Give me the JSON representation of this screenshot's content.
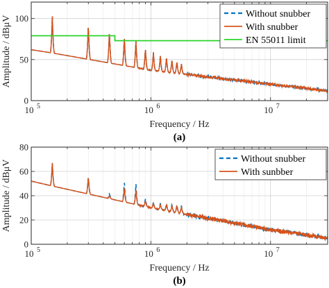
{
  "chart_data": [
    {
      "type": "line",
      "panel_label": "(a)",
      "xlabel": "Frequency / Hz",
      "ylabel": "Amplitude / dBμV",
      "xscale": "log",
      "xlim": [
        100000,
        30000000
      ],
      "ylim": [
        0,
        120
      ],
      "yticks": [
        0,
        50,
        100
      ],
      "xtick_labels": [
        {
          "base": "10",
          "exp": "5",
          "value": 100000
        },
        {
          "base": "10",
          "exp": "6",
          "value": 1000000
        },
        {
          "base": "10",
          "exp": "7",
          "value": 10000000
        }
      ],
      "grid": true,
      "legend_position": "top-right",
      "series": [
        {
          "name": "Without snubber",
          "color": "#0072BD",
          "style": "dashed",
          "baseline": [
            [
              100000,
              62
            ],
            [
              150000,
              58
            ],
            [
              1000000,
              37
            ],
            [
              10000000,
              20
            ],
            [
              30000000,
              12
            ]
          ],
          "peaks": [
            [
              150000,
              103
            ],
            [
              300000,
              93
            ],
            [
              450000,
              85
            ],
            [
              600000,
              78
            ],
            [
              750000,
              74
            ],
            [
              900000,
              64
            ],
            [
              1050000,
              59
            ],
            [
              1200000,
              55
            ],
            [
              1350000,
              53
            ],
            [
              1500000,
              50
            ],
            [
              1650000,
              48
            ],
            [
              1800000,
              45
            ]
          ]
        },
        {
          "name": "With snubber",
          "color": "#D95319",
          "style": "solid",
          "baseline": [
            [
              100000,
              62
            ],
            [
              150000,
              58
            ],
            [
              1000000,
              37
            ],
            [
              10000000,
              20
            ],
            [
              30000000,
              12
            ]
          ],
          "peaks": [
            [
              150000,
              103
            ],
            [
              300000,
              93
            ],
            [
              450000,
              85
            ],
            [
              600000,
              78
            ],
            [
              750000,
              74
            ],
            [
              900000,
              64
            ],
            [
              1050000,
              59
            ],
            [
              1200000,
              55
            ],
            [
              1350000,
              53
            ],
            [
              1500000,
              50
            ],
            [
              1650000,
              48
            ],
            [
              1800000,
              45
            ]
          ]
        },
        {
          "name": "EN 55011 limit",
          "color": "#2BD42B",
          "style": "solid",
          "points": [
            [
              100000,
              79
            ],
            [
              500000,
              79
            ],
            [
              500000,
              73
            ],
            [
              30000000,
              73
            ]
          ]
        }
      ]
    },
    {
      "type": "line",
      "panel_label": "(b)",
      "xlabel": "Frequency / Hz",
      "ylabel": "Amplitude / dBμV",
      "xscale": "log",
      "xlim": [
        100000,
        30000000
      ],
      "ylim": [
        0,
        80
      ],
      "yticks": [
        0,
        20,
        40,
        60,
        80
      ],
      "xtick_labels": [
        {
          "base": "10",
          "exp": "5",
          "value": 100000
        },
        {
          "base": "10",
          "exp": "6",
          "value": 1000000
        },
        {
          "base": "10",
          "exp": "7",
          "value": 10000000
        }
      ],
      "grid": true,
      "legend_position": "top-right",
      "series": [
        {
          "name": "Without snubber",
          "color": "#0072BD",
          "style": "dashed",
          "baseline": [
            [
              100000,
              52
            ],
            [
              150000,
              48
            ],
            [
              1000000,
              30
            ],
            [
              10000000,
              12
            ],
            [
              30000000,
              5
            ]
          ],
          "peaks": [
            [
              150000,
              67
            ],
            [
              300000,
              56
            ],
            [
              450000,
              42
            ],
            [
              600000,
              52
            ],
            [
              750000,
              50
            ],
            [
              900000,
              38
            ],
            [
              1050000,
              35
            ],
            [
              1200000,
              34
            ],
            [
              1350000,
              34
            ],
            [
              1500000,
              33
            ],
            [
              1650000,
              33
            ],
            [
              1800000,
              32
            ]
          ]
        },
        {
          "name": "With sunbber",
          "color": "#D95319",
          "style": "solid",
          "baseline": [
            [
              100000,
              52
            ],
            [
              150000,
              48
            ],
            [
              1000000,
              30
            ],
            [
              10000000,
              12
            ],
            [
              30000000,
              5
            ]
          ],
          "peaks": [
            [
              150000,
              67
            ],
            [
              300000,
              56
            ],
            [
              450000,
              40
            ],
            [
              600000,
              47
            ],
            [
              750000,
              45
            ],
            [
              900000,
              36
            ],
            [
              1050000,
              34
            ],
            [
              1200000,
              33
            ],
            [
              1350000,
              33
            ],
            [
              1500000,
              32
            ],
            [
              1650000,
              32
            ],
            [
              1800000,
              31
            ]
          ]
        }
      ]
    }
  ]
}
